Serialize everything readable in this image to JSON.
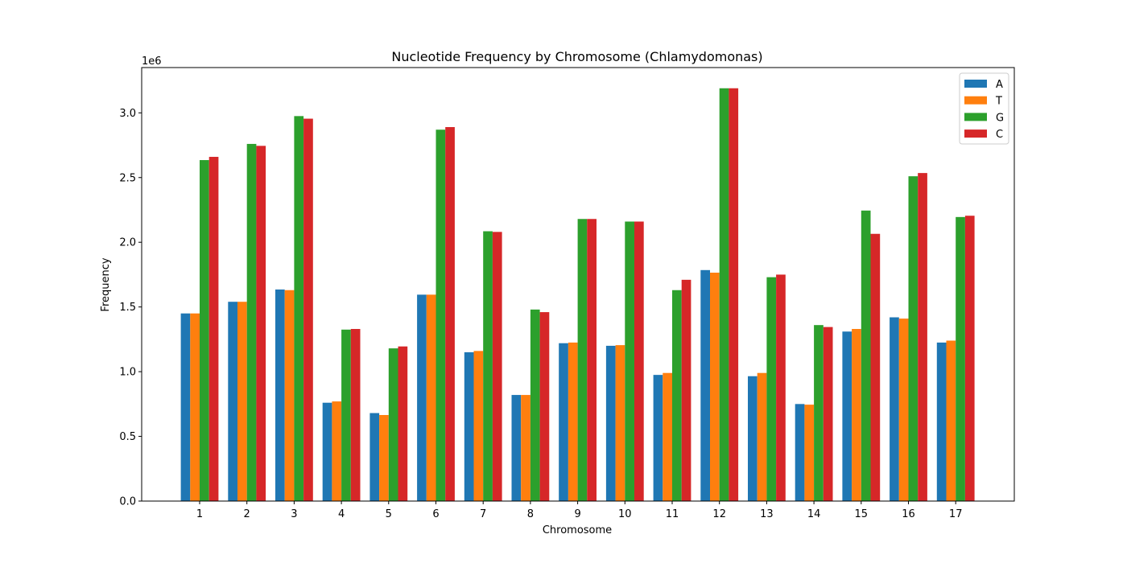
{
  "chart_data": {
    "type": "bar",
    "title": "Nucleotide Frequency by Chromosome (Chlamydomonas)",
    "xlabel": "Chromosome",
    "ylabel": "Frequency",
    "y_offset_label": "1e6",
    "ylim": [
      0,
      3350000
    ],
    "yticks": [
      0,
      500000,
      1000000,
      1500000,
      2000000,
      2500000,
      3000000
    ],
    "ytick_labels": [
      "0.0",
      "0.5",
      "1.0",
      "1.5",
      "2.0",
      "2.5",
      "3.0"
    ],
    "legend_position": "top-right",
    "grid": false,
    "categories": [
      "1",
      "2",
      "3",
      "4",
      "5",
      "6",
      "7",
      "8",
      "9",
      "10",
      "11",
      "12",
      "13",
      "14",
      "15",
      "16",
      "17"
    ],
    "series": [
      {
        "name": "A",
        "color": "#1f77b4",
        "values": [
          1450000,
          1540000,
          1635000,
          760000,
          680000,
          1595000,
          1150000,
          820000,
          1220000,
          1200000,
          975000,
          1785000,
          965000,
          750000,
          1310000,
          1420000,
          1225000
        ]
      },
      {
        "name": "T",
        "color": "#ff7f0e",
        "values": [
          1450000,
          1540000,
          1630000,
          770000,
          665000,
          1595000,
          1160000,
          820000,
          1225000,
          1205000,
          990000,
          1765000,
          990000,
          745000,
          1330000,
          1410000,
          1240000
        ]
      },
      {
        "name": "G",
        "color": "#2ca02c",
        "values": [
          2635000,
          2760000,
          2975000,
          1325000,
          1180000,
          2870000,
          2085000,
          1480000,
          2180000,
          2160000,
          1630000,
          3190000,
          1730000,
          1360000,
          2245000,
          2510000,
          2195000
        ]
      },
      {
        "name": "C",
        "color": "#d62728",
        "values": [
          2660000,
          2745000,
          2955000,
          1330000,
          1195000,
          2890000,
          2080000,
          1460000,
          2180000,
          2160000,
          1710000,
          3190000,
          1750000,
          1345000,
          2065000,
          2535000,
          2205000
        ]
      }
    ]
  }
}
